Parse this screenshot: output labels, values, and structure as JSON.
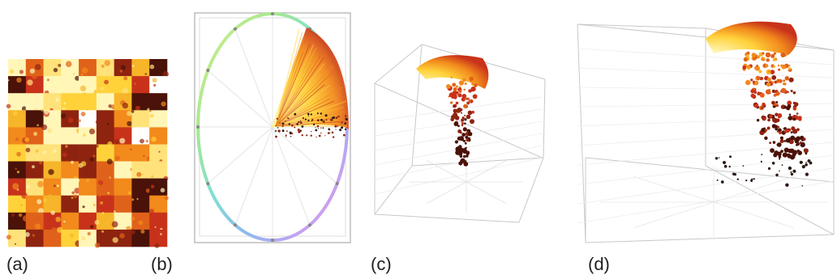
{
  "panels": [
    {
      "id": "a",
      "label": "(a)"
    },
    {
      "id": "b",
      "label": "(b)"
    },
    {
      "id": "c",
      "label": "(c)"
    },
    {
      "id": "d",
      "label": "(d)"
    }
  ],
  "colors": {
    "fire_light": "#fff6b8",
    "fire_yellow": "#ffd23a",
    "fire_orange": "#f28a1c",
    "fire_red": "#c8321a",
    "fire_dark": "#4a1208",
    "box_line": "#c8c8c8",
    "hue_ring": [
      "#ff7ad0",
      "#c9a0f0",
      "#8fb8f0",
      "#7fe0d0",
      "#a8e890",
      "#d8f08a"
    ]
  },
  "icons": [
    "fire-mosaic",
    "hue-wheel",
    "3d-point-cloud"
  ]
}
